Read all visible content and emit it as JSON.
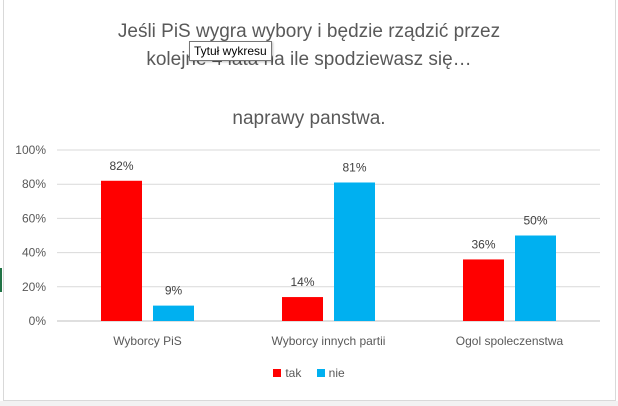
{
  "tooltip": "Tytuł wykresu",
  "chart_data": {
    "type": "bar",
    "title_lines": [
      "Jeśli PiS wygra wybory i będzie rządzić przez",
      "kolejne 4 lata na ile spodziewasz się…",
      "naprawy panstwa."
    ],
    "categories": [
      "Wyborcy PiS",
      "Wyborcy innych partii",
      "Ogol spoleczenstwa"
    ],
    "series": [
      {
        "name": "tak",
        "color": "#ff0000",
        "values": [
          82,
          14,
          36
        ],
        "labels": [
          "82%",
          "14%",
          "36%"
        ]
      },
      {
        "name": "nie",
        "color": "#00b0f0",
        "values": [
          9,
          81,
          50
        ],
        "labels": [
          "9%",
          "81%",
          "50%"
        ]
      }
    ],
    "yticks": [
      "0%",
      "20%",
      "40%",
      "60%",
      "80%",
      "100%"
    ],
    "ylim": [
      0,
      100
    ],
    "grid": true,
    "legend_position": "bottom"
  }
}
